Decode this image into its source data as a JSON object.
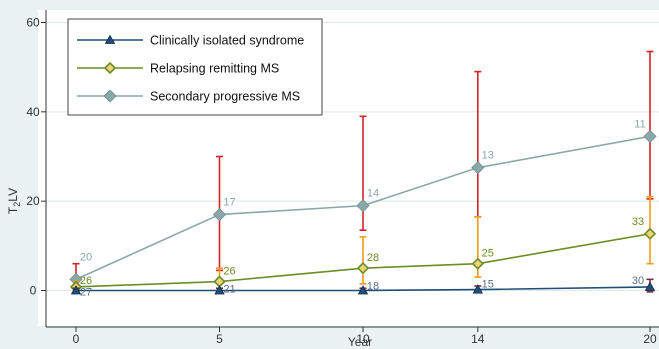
{
  "chart_data": {
    "type": "line",
    "xlabel": "Year",
    "ylabel_main": "T",
    "ylabel_sub": "2",
    "ylabel_suffix": "LV",
    "x_ticks": [
      "0",
      "5",
      "10",
      "14",
      "20"
    ],
    "y_ticks": [
      "0",
      "20",
      "40",
      "60"
    ],
    "xlim": [
      0,
      20
    ],
    "ylim": [
      -3,
      63
    ],
    "grid": "horizontal",
    "legend_position": "top-left",
    "series": [
      {
        "name": "Secondary progressive MS",
        "color": "#8aa8a8",
        "marker": "diamond",
        "points": [
          {
            "x": 0,
            "y": 2.5,
            "err_low": 0.0,
            "err_high": 6.0,
            "count": "20"
          },
          {
            "x": 5,
            "y": 17.0,
            "err_low": 4.5,
            "err_high": 30.0,
            "count": "17"
          },
          {
            "x": 10,
            "y": 19.0,
            "err_low": 13.5,
            "err_high": 39.0,
            "count": "14"
          },
          {
            "x": 14,
            "y": 27.5,
            "err_low": 16.5,
            "err_high": 49.0,
            "count": "13"
          },
          {
            "x": 20,
            "y": 34.5,
            "err_low": 20.5,
            "err_high": 53.5,
            "count": "11"
          }
        ]
      },
      {
        "name": "Relapsing remitting MS",
        "color": "#6b8e23",
        "marker": "diamond-open",
        "points": [
          {
            "x": 0,
            "y": 0.8,
            "err_low": 0.0,
            "err_high": 2.0,
            "count": "26"
          },
          {
            "x": 5,
            "y": 2.0,
            "err_low": 0.5,
            "err_high": 5.0,
            "count": "26"
          },
          {
            "x": 10,
            "y": 5.0,
            "err_low": 1.5,
            "err_high": 12.0,
            "count": "28"
          },
          {
            "x": 14,
            "y": 6.0,
            "err_low": 3.0,
            "err_high": 16.5,
            "count": "25"
          },
          {
            "x": 20,
            "y": 12.7,
            "err_low": 6.0,
            "err_high": 21.0,
            "count": "33"
          }
        ]
      },
      {
        "name": "Clinically isolated syndrome",
        "color": "#1f4e79",
        "marker": "triangle",
        "points": [
          {
            "x": 0,
            "y": 0.0,
            "err_low": -0.5,
            "err_high": 0.5,
            "count": "27"
          },
          {
            "x": 5,
            "y": 0.0,
            "err_low": -0.5,
            "err_high": 0.5,
            "count": "21"
          },
          {
            "x": 10,
            "y": 0.0,
            "err_low": -0.5,
            "err_high": 0.5,
            "count": "18"
          },
          {
            "x": 14,
            "y": 0.2,
            "err_low": -0.5,
            "err_high": 1.0,
            "count": "15"
          },
          {
            "x": 20,
            "y": 0.8,
            "err_low": -0.3,
            "err_high": 2.5,
            "count": "30"
          }
        ]
      }
    ],
    "legend_order": [
      "Clinically isolated syndrome",
      "Relapsing remitting MS",
      "Secondary progressive MS"
    ],
    "colors": {
      "plot_background": "#ffffff",
      "outer_background": "#eaf2f3",
      "grid": "#dfe8ea",
      "error_bar_red": "#d2232a",
      "error_bar_orange": "#f59a1b",
      "error_bar_dark": "#7a2a3a"
    }
  }
}
